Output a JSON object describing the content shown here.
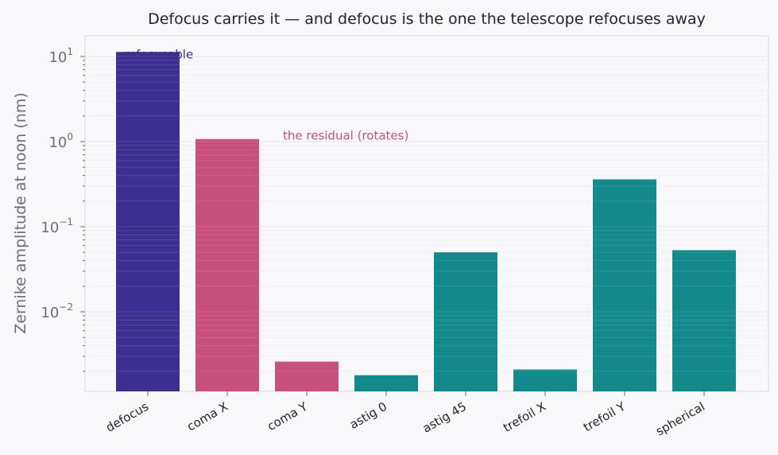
{
  "chart_data": {
    "type": "bar",
    "title": "Defocus carries it — and defocus is the one the telescope refocuses away",
    "xlabel": "",
    "ylabel": "Zernike amplitude at noon  (nm)",
    "yscale": "log",
    "ylim": [
      0.0012,
      18
    ],
    "yticks": [
      {
        "value": 10,
        "base": "10",
        "exp": "1"
      },
      {
        "value": 1,
        "base": "10",
        "exp": "0"
      },
      {
        "value": 0.1,
        "base": "10",
        "exp": "−1"
      },
      {
        "value": 0.01,
        "base": "10",
        "exp": "−2"
      }
    ],
    "categories": [
      "defocus",
      "coma X",
      "coma Y",
      "astig 0",
      "astig 45",
      "trefoil X",
      "trefoil Y",
      "spherical"
    ],
    "values": [
      11.3,
      1.07,
      0.0026,
      0.0018,
      0.05,
      0.0021,
      0.36,
      0.053
    ],
    "colors": [
      "#3d2f91",
      "#c94f7c",
      "#c94f7c",
      "#12898a",
      "#12898a",
      "#12898a",
      "#12898a",
      "#12898a"
    ],
    "grid": true,
    "annotations": [
      {
        "text": "refocusable",
        "category": "defocus",
        "y": 10.5,
        "color": "#3d2f91"
      },
      {
        "text": "the residual (rotates)",
        "category": "coma Y",
        "y": 1.17,
        "color": "#c94f7c"
      }
    ]
  }
}
